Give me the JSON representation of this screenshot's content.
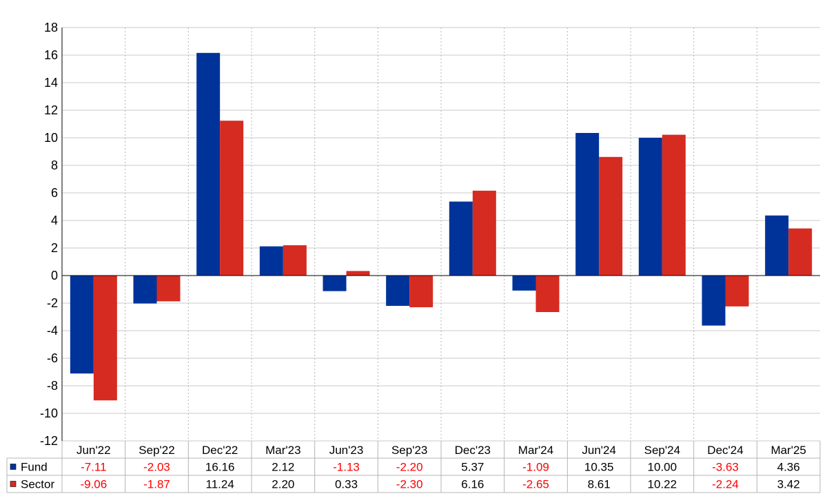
{
  "chart_data": {
    "type": "bar",
    "title": "",
    "xlabel": "",
    "ylabel": "",
    "ylim": [
      -12,
      18
    ],
    "yticks": [
      18,
      16,
      14,
      12,
      10,
      8,
      6,
      4,
      2,
      0,
      -2,
      -4,
      -6,
      -8,
      -10,
      -12
    ],
    "grid": true,
    "legend": "table-bottom-left",
    "categories": [
      "Jun'22",
      "Sep'22",
      "Dec'22",
      "Mar'23",
      "Jun'23",
      "Sep'23",
      "Dec'23",
      "Mar'24",
      "Jun'24",
      "Sep'24",
      "Dec'24",
      "Mar'25"
    ],
    "series": [
      {
        "name": "Fund",
        "color": "#003399",
        "values": [
          -7.11,
          -2.03,
          16.16,
          2.12,
          -1.13,
          -2.2,
          5.37,
          -1.09,
          10.35,
          10.0,
          -3.63,
          4.36
        ],
        "labels": [
          "-7.11",
          "-2.03",
          "16.16",
          "2.12",
          "-1.13",
          "-2.20",
          "5.37",
          "-1.09",
          "10.35",
          "10.00",
          "-3.63",
          "4.36"
        ]
      },
      {
        "name": "Sector",
        "color": "#d62b21",
        "values": [
          -9.06,
          -1.87,
          11.24,
          2.2,
          0.33,
          -2.3,
          6.16,
          -2.65,
          8.61,
          10.22,
          -2.24,
          3.42
        ],
        "labels": [
          "-9.06",
          "-1.87",
          "11.24",
          "2.20",
          "0.33",
          "-2.30",
          "6.16",
          "-2.65",
          "8.61",
          "10.22",
          "-2.24",
          "3.42"
        ]
      }
    ],
    "negative_color": "#ff0000",
    "positive_color": "#000000"
  }
}
